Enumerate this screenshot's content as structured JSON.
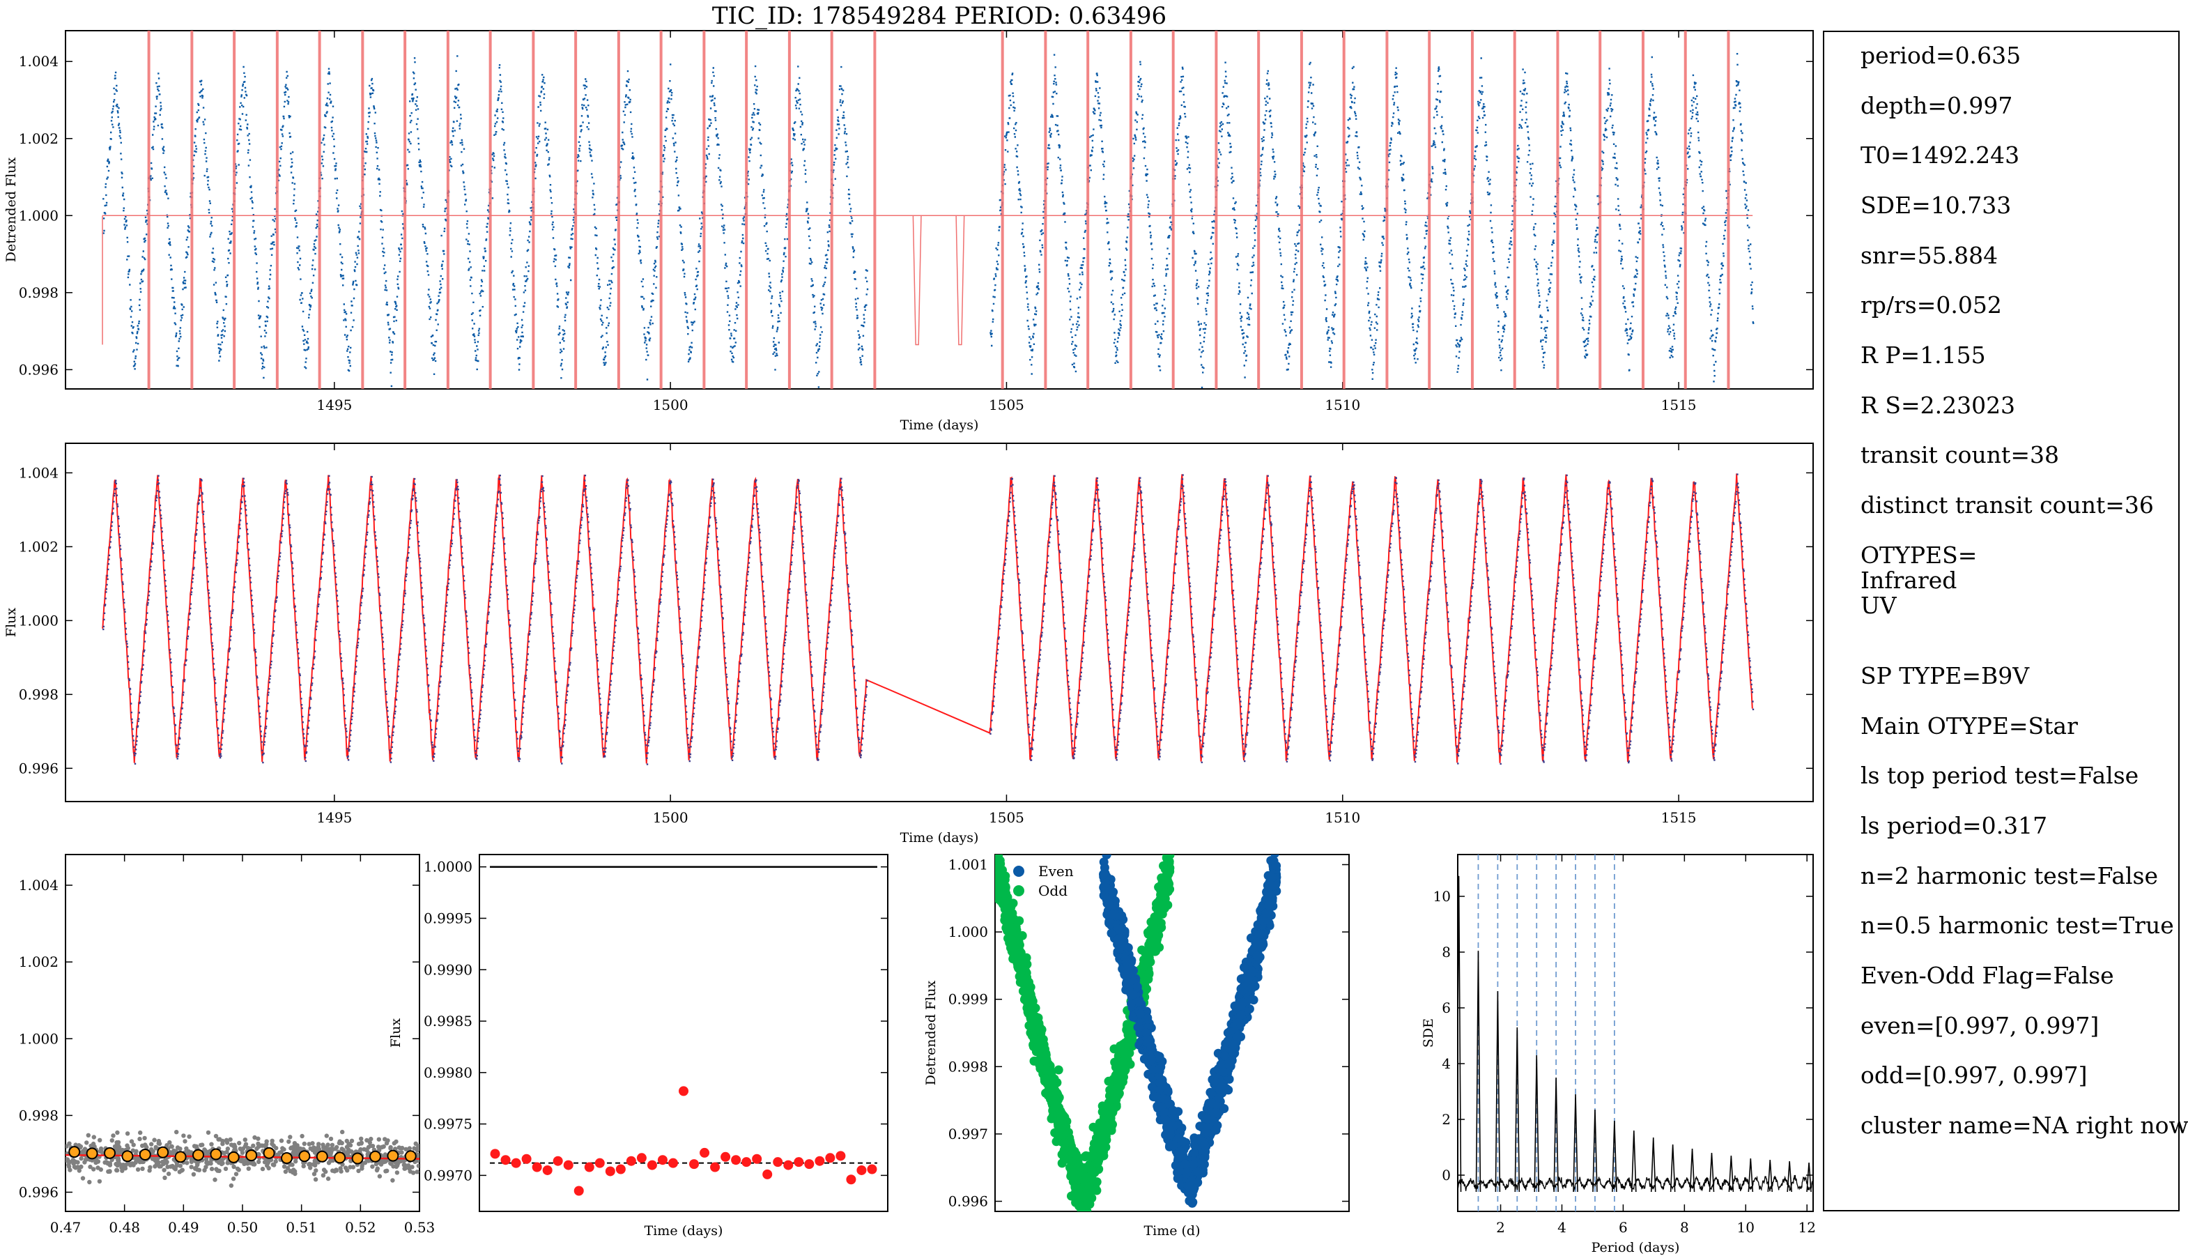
{
  "title": "TIC_ID: 178549284 PERIOD: 0.63496",
  "colors": {
    "blue": "#0a5aa6",
    "red": "#ff1a1a",
    "green": "#00b84a",
    "orange": "#ffa21a",
    "gray": "#808080",
    "model_red": "#f07070"
  },
  "chart_data": [
    {
      "type": "scatter",
      "name_tag": "detrended-flux-panel",
      "title": "",
      "xlabel": "Time (days)",
      "ylabel": "Detrended Flux",
      "xlim": [
        1491.0,
        1517.0
      ],
      "ylim": [
        0.9955,
        1.0048
      ],
      "xticks": [
        1495,
        1500,
        1505,
        1510,
        1515
      ],
      "xtick_labels": [
        "1495",
        "1500",
        "1505",
        "1510",
        "1515"
      ],
      "yticks": [
        0.996,
        0.998,
        1.0,
        1.002,
        1.004
      ],
      "ytick_labels": [
        "0.996",
        "0.998",
        "1.000",
        "1.002",
        "1.004"
      ],
      "segments": [
        [
          1491.55,
          1502.92
        ],
        [
          1504.75,
          1516.1
        ]
      ],
      "period": 0.63496,
      "phase_ref": 1492.243,
      "flux_min": 0.9962,
      "flux_max": 1.0036,
      "model_baseline": 1.0,
      "model_depth_level": 0.99665,
      "transit_lines": [
        1492.24,
        1492.88,
        1493.51,
        1494.15,
        1494.78,
        1495.42,
        1496.05,
        1496.69,
        1497.32,
        1497.96,
        1498.59,
        1499.23,
        1499.86,
        1500.5,
        1501.13,
        1501.77,
        1502.4,
        1503.04,
        1504.94,
        1505.58,
        1506.21,
        1506.85,
        1507.48,
        1508.12,
        1508.75,
        1509.39,
        1510.02,
        1510.66,
        1511.29,
        1511.93,
        1512.56,
        1513.2,
        1513.83,
        1514.47,
        1515.1,
        1515.74
      ],
      "gap_model_dips": [
        1503.67,
        1504.31
      ]
    },
    {
      "type": "line",
      "name_tag": "flux-model-panel",
      "title": "",
      "xlabel": "Time (days)",
      "ylabel": "Flux",
      "xlim": [
        1491.0,
        1517.0
      ],
      "ylim": [
        0.9951,
        1.0048
      ],
      "xticks": [
        1495,
        1500,
        1505,
        1510,
        1515
      ],
      "xtick_labels": [
        "1495",
        "1500",
        "1505",
        "1510",
        "1515"
      ],
      "yticks": [
        0.996,
        0.998,
        1.0,
        1.002,
        1.004
      ],
      "ytick_labels": [
        "0.996",
        "0.998",
        "1.000",
        "1.002",
        "1.004"
      ],
      "segments": [
        [
          1491.55,
          1502.92
        ],
        [
          1504.75,
          1516.1
        ]
      ],
      "period": 0.63496,
      "flux_min": 0.9962,
      "flux_max": 1.0039
    },
    {
      "type": "scatter",
      "name_tag": "phase-fold-panel",
      "title": "",
      "xlabel": "",
      "ylabel": "",
      "xlim": [
        0.47,
        0.53
      ],
      "ylim": [
        0.9955,
        1.0048
      ],
      "xticks": [
        0.47,
        0.48,
        0.49,
        0.5,
        0.51,
        0.52,
        0.53
      ],
      "xtick_labels": [
        "0.47",
        "0.48",
        "0.49",
        "0.50",
        "0.51",
        "0.52",
        "0.53"
      ],
      "yticks": [
        0.996,
        0.998,
        1.0,
        1.002,
        1.004
      ],
      "ytick_labels": [
        "0.996",
        "0.998",
        "1.000",
        "1.002",
        "1.004"
      ],
      "binned_x": [
        0.4715,
        0.4745,
        0.4775,
        0.4805,
        0.4835,
        0.4865,
        0.4895,
        0.4925,
        0.4955,
        0.4985,
        0.5015,
        0.5045,
        0.5075,
        0.5105,
        0.5135,
        0.5165,
        0.5195,
        0.5225,
        0.5255,
        0.5285
      ],
      "binned_y": [
        0.99705,
        0.99701,
        0.99702,
        0.99694,
        0.99698,
        0.99704,
        0.99692,
        0.99697,
        0.99699,
        0.99691,
        0.99696,
        0.99702,
        0.99689,
        0.99694,
        0.99693,
        0.9969,
        0.99688,
        0.99693,
        0.99695,
        0.99694
      ]
    },
    {
      "type": "scatter",
      "name_tag": "transit-depths-panel",
      "title": "",
      "xlabel": "Time (days)",
      "ylabel": "Flux",
      "ylim": [
        0.99665,
        1.00012
      ],
      "yticks": [
        0.997,
        0.9975,
        0.998,
        0.9985,
        0.999,
        0.9995,
        1.0
      ],
      "ytick_labels": [
        "0.9970",
        "0.9975",
        "0.9980",
        "0.9985",
        "0.9990",
        "0.9995",
        "1.0000"
      ],
      "reference_line": 1.0,
      "mean_depth": 0.99712,
      "depths": [
        0.99721,
        0.99715,
        0.99712,
        0.99716,
        0.99708,
        0.99705,
        0.99714,
        0.9971,
        0.99685,
        0.99708,
        0.99712,
        0.99704,
        0.99706,
        0.99714,
        0.99717,
        0.9971,
        0.99715,
        0.99712,
        0.99782,
        0.99711,
        0.99722,
        0.99708,
        0.99718,
        0.99715,
        0.99713,
        0.99716,
        0.99701,
        0.99713,
        0.9971,
        0.99713,
        0.99711,
        0.99714,
        0.99717,
        0.99719,
        0.99696,
        0.99705,
        0.99706
      ]
    },
    {
      "type": "scatter",
      "name_tag": "even-odd-panel",
      "title": "",
      "xlabel": "Time (d)",
      "ylabel": "Detrended Flux",
      "ylim": [
        0.99585,
        1.00115
      ],
      "yticks": [
        0.996,
        0.997,
        0.998,
        0.999,
        1.0,
        1.001
      ],
      "ytick_labels": [
        "0.996",
        "0.997",
        "0.998",
        "0.999",
        "1.000",
        "1.001"
      ],
      "series": [
        {
          "name": "Even",
          "color": "#0a5aa6",
          "v_center": 0.55,
          "v_min": 0.99635,
          "v_max": 1.0009
        },
        {
          "name": "Odd",
          "color": "#00b84a",
          "v_center": 0.25,
          "v_min": 0.9961,
          "v_max": 1.001
        }
      ]
    },
    {
      "type": "line",
      "name_tag": "periodogram-panel",
      "title": "",
      "xlabel": "Period (days)",
      "ylabel": "SDE",
      "xlim": [
        0.6,
        12.2
      ],
      "ylim": [
        -1.3,
        11.5
      ],
      "xticks": [
        2,
        4,
        6,
        8,
        10,
        12
      ],
      "xtick_labels": [
        "2",
        "4",
        "6",
        "8",
        "10",
        "12"
      ],
      "yticks": [
        0,
        2,
        4,
        6,
        8,
        10
      ],
      "ytick_labels": [
        "0",
        "2",
        "4",
        "6",
        "8",
        "10"
      ],
      "harmonic_lines": [
        1.27,
        1.905,
        2.54,
        3.175,
        3.81,
        4.445,
        5.08,
        5.715
      ],
      "peaks": [
        [
          0.635,
          10.73
        ],
        [
          1.27,
          8.05
        ],
        [
          1.905,
          6.6
        ],
        [
          2.54,
          5.3
        ],
        [
          3.175,
          4.3
        ],
        [
          3.81,
          3.5
        ],
        [
          4.445,
          2.9
        ],
        [
          5.08,
          2.35
        ],
        [
          5.715,
          1.95
        ],
        [
          6.35,
          1.6
        ],
        [
          6.985,
          1.35
        ],
        [
          7.62,
          1.1
        ],
        [
          8.255,
          0.95
        ],
        [
          8.89,
          0.8
        ],
        [
          9.525,
          0.7
        ],
        [
          10.16,
          0.6
        ],
        [
          10.795,
          0.55
        ],
        [
          11.43,
          0.5
        ],
        [
          12.065,
          0.45
        ]
      ]
    }
  ],
  "info": {
    "lines": [
      "period=0.635",
      "depth=0.997",
      "T0=1492.243",
      "SDE=10.733",
      "snr=55.884",
      "rp/rs=0.052",
      "R P=1.155",
      "R S=2.23023",
      "transit count=38",
      "distinct transit count=36",
      "OTYPES=\nInfrared\nUV",
      "SP TYPE=B9V",
      "Main OTYPE=Star",
      "ls top period test=False",
      "ls period=0.317",
      "n=2 harmonic test=False",
      "n=0.5 harmonic test=True",
      "Even-Odd Flag=False",
      "even=[0.997, 0.997]",
      "odd=[0.997, 0.997]",
      "cluster name=NA right now"
    ]
  }
}
